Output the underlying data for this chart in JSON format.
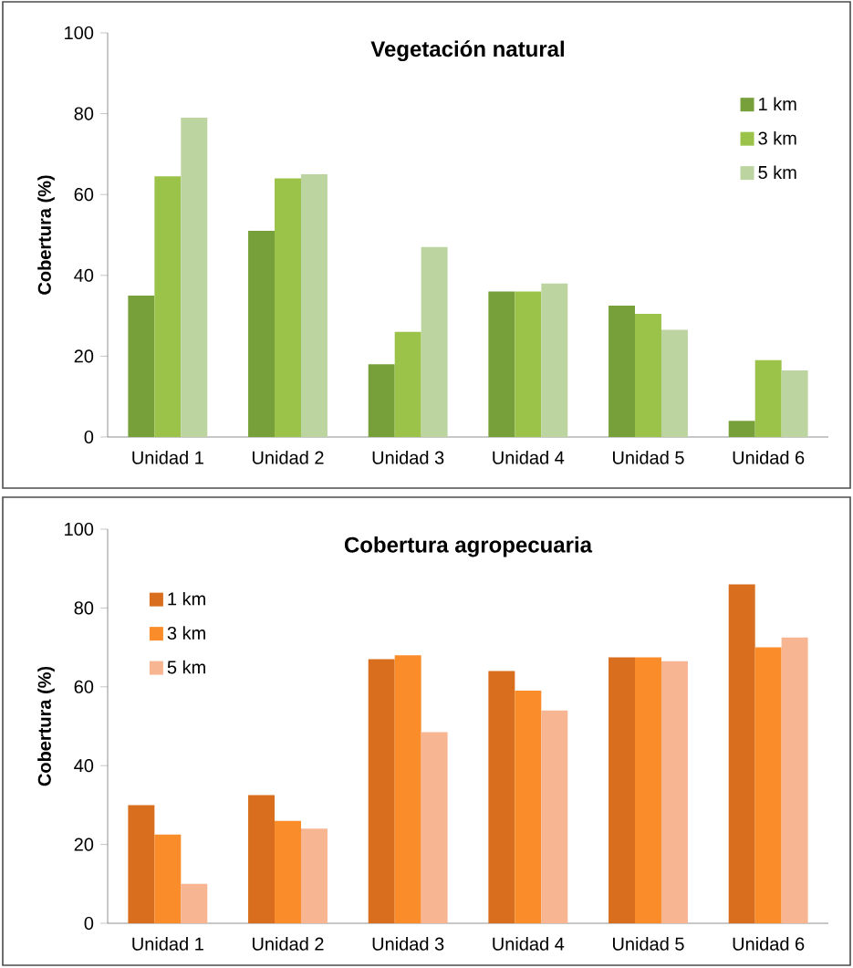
{
  "chart_data": [
    {
      "type": "bar",
      "title": "Vegetación natural",
      "ylabel": "Cobertura (%)",
      "categories": [
        "Unidad 1",
        "Unidad 2",
        "Unidad 3",
        "Unidad 4",
        "Unidad 5",
        "Unidad 6"
      ],
      "series": [
        {
          "name": "1 km",
          "color": "#77a03a",
          "values": [
            35,
            51,
            18,
            36,
            32.5,
            4
          ]
        },
        {
          "name": "3 km",
          "color": "#9bc34a",
          "values": [
            64.5,
            64,
            26,
            36,
            30.5,
            19
          ]
        },
        {
          "name": "5 km",
          "color": "#bcd4a0",
          "values": [
            79,
            65,
            47,
            38,
            26.5,
            16.5
          ]
        }
      ],
      "ylim": [
        0,
        100
      ],
      "yticks": [
        0,
        20,
        40,
        60,
        80,
        100
      ],
      "legend": "top right"
    },
    {
      "type": "bar",
      "title": "Cobertura agropecuaria",
      "ylabel": "Cobertura (%)",
      "categories": [
        "Unidad 1",
        "Unidad 2",
        "Unidad 3",
        "Unidad 4",
        "Unidad 5",
        "Unidad 6"
      ],
      "series": [
        {
          "name": "1 km",
          "color": "#d86e1e",
          "values": [
            30,
            32.5,
            67,
            64,
            67.5,
            86
          ]
        },
        {
          "name": "3 km",
          "color": "#fb8c2a",
          "values": [
            22.5,
            26,
            68,
            59,
            67.5,
            70
          ]
        },
        {
          "name": "5 km",
          "color": "#f8b592",
          "values": [
            10,
            24,
            48.5,
            54,
            66.5,
            72.5
          ]
        }
      ],
      "ylim": [
        0,
        100
      ],
      "yticks": [
        0,
        20,
        40,
        60,
        80,
        100
      ],
      "legend": "top left"
    }
  ]
}
